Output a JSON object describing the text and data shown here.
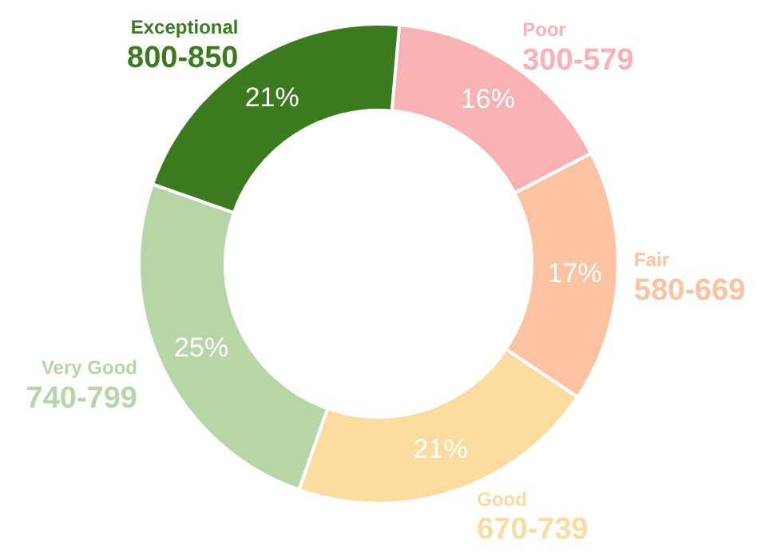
{
  "chart_data": {
    "type": "donut",
    "categories": [
      "Poor\n300-579",
      "Fair\n580-669",
      "Good\n670-739",
      "Very Good\n740-799",
      "Exceptional\n800-850"
    ],
    "values": [
      16,
      17,
      21,
      25,
      21
    ],
    "value_labels": [
      "16%",
      "17%",
      "21%",
      "25%",
      "21%"
    ],
    "colors": [
      "#f8b2b3",
      "#fbc3a0",
      "#fbdca0",
      "#b6d6a8",
      "#3b7a1f"
    ],
    "legend": false
  }
}
